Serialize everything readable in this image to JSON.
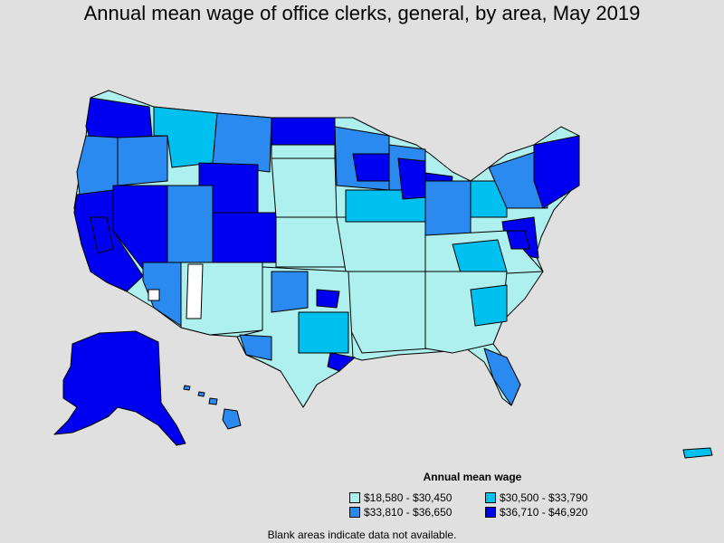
{
  "title": "Annual mean wage of office clerks, general, by area, May 2019",
  "legend": {
    "title": "Annual mean wage",
    "items": [
      {
        "label": "$18,580 - $30,450",
        "color": "#aef0ee"
      },
      {
        "label": "$30,500 - $33,790",
        "color": "#00c0f0"
      },
      {
        "label": "$33,810 - $36,650",
        "color": "#2a8af0"
      },
      {
        "label": "$36,710 - $46,920",
        "color": "#0000f0"
      }
    ]
  },
  "no_data_color": "#ffffff",
  "footnote": "Blank areas indicate data not available."
}
